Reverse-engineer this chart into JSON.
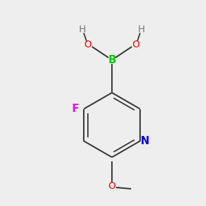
{
  "bg_color": "#eeeeee",
  "atom_colors": {
    "B": "#00cc00",
    "O": "#ff0000",
    "H": "#777777",
    "F": "#ee00ee",
    "N": "#0000ee",
    "C": "#3a3a3a"
  },
  "bond_color": "#3a3a3a",
  "bond_width": 1.5
}
